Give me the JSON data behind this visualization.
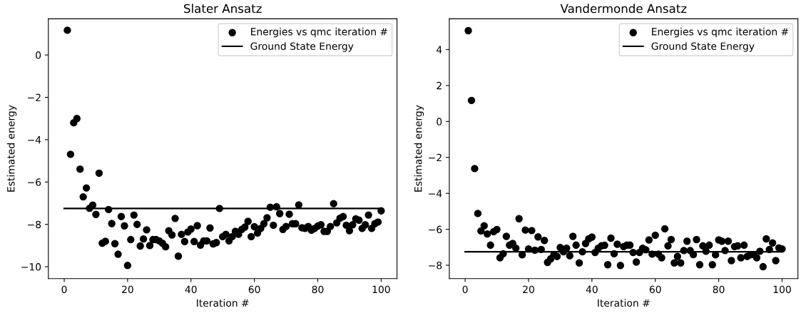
{
  "chart_data": [
    {
      "type": "scatter",
      "title": "Slater Ansatz",
      "xlabel": "Iteration #",
      "ylabel": "Estimated energy",
      "xlim": [
        -5,
        105
      ],
      "ylim": [
        -10.56,
        1.71
      ],
      "xticks": [
        0,
        20,
        40,
        60,
        80,
        100
      ],
      "yticks": [
        {
          "value": -10,
          "label": "−10"
        },
        {
          "value": -8,
          "label": "−8"
        },
        {
          "value": -6,
          "label": "−6"
        },
        {
          "value": -4,
          "label": "−4"
        },
        {
          "value": -2,
          "label": "−2"
        },
        0
      ],
      "legend": "top right",
      "grid": false,
      "series": [
        {
          "name": "Energies vs qmc iteration #",
          "marker": "circle",
          "color": "#000000",
          "x": [
            1,
            2,
            3,
            4,
            5,
            6,
            7,
            8,
            9,
            10,
            11,
            12,
            13,
            14,
            15,
            16,
            17,
            18,
            19,
            20,
            21,
            22,
            23,
            24,
            25,
            26,
            27,
            28,
            29,
            30,
            31,
            32,
            33,
            34,
            35,
            36,
            37,
            38,
            39,
            40,
            41,
            42,
            43,
            44,
            45,
            46,
            47,
            48,
            49,
            50,
            51,
            52,
            53,
            54,
            55,
            56,
            57,
            58,
            59,
            60,
            61,
            62,
            63,
            64,
            65,
            66,
            67,
            68,
            69,
            70,
            71,
            72,
            73,
            74,
            75,
            76,
            77,
            78,
            79,
            80,
            81,
            82,
            83,
            84,
            85,
            86,
            87,
            88,
            89,
            90,
            91,
            92,
            93,
            94,
            95,
            96,
            97,
            98,
            99,
            100
          ],
          "values": [
            1.17,
            -4.69,
            -3.2,
            -3.0,
            -5.39,
            -6.7,
            -6.28,
            -7.24,
            -7.09,
            -7.53,
            -5.58,
            -8.89,
            -8.8,
            -7.3,
            -7.96,
            -8.91,
            -9.41,
            -7.63,
            -8.07,
            -9.94,
            -8.72,
            -7.56,
            -8.0,
            -9.02,
            -8.69,
            -8.26,
            -9.0,
            -8.72,
            -8.72,
            -8.78,
            -8.89,
            -9.06,
            -8.3,
            -8.5,
            -7.72,
            -9.5,
            -8.47,
            -8.81,
            -8.36,
            -8.22,
            -8.81,
            -8.06,
            -8.98,
            -8.78,
            -8.78,
            -8.17,
            -8.92,
            -8.86,
            -7.25,
            -8.58,
            -8.47,
            -8.78,
            -8.58,
            -8.33,
            -8.47,
            -8.24,
            -8.13,
            -7.86,
            -8.58,
            -8.11,
            -8.41,
            -8.19,
            -7.97,
            -7.69,
            -7.19,
            -8.04,
            -7.17,
            -7.49,
            -8.24,
            -8.1,
            -7.52,
            -7.97,
            -7.97,
            -7.08,
            -8.16,
            -8.19,
            -8.1,
            -8.27,
            -8.19,
            -8.08,
            -8.02,
            -8.33,
            -8.33,
            -8.1,
            -7.02,
            -7.93,
            -7.71,
            -7.63,
            -8.04,
            -8.3,
            -8.02,
            -7.74,
            -7.8,
            -8.19,
            -8.02,
            -7.56,
            -8.19,
            -7.97,
            -7.89,
            -7.36
          ]
        },
        {
          "name": "Ground State Energy",
          "type": "line",
          "line_style": "solid",
          "color": "#000000",
          "x": [
            0,
            100
          ],
          "values": [
            -7.25,
            -7.25
          ]
        }
      ]
    },
    {
      "type": "scatter",
      "title": "Vandermonde Ansatz",
      "xlabel": "Iteration #",
      "ylabel": "Estimated energy",
      "xlim": [
        -5,
        105
      ],
      "ylim": [
        -8.74,
        5.71
      ],
      "xticks": [
        0,
        20,
        40,
        60,
        80,
        100
      ],
      "yticks": [
        {
          "value": -8,
          "label": "−8"
        },
        {
          "value": -6,
          "label": "−6"
        },
        {
          "value": -4,
          "label": "−4"
        },
        {
          "value": -2,
          "label": "−2"
        },
        0,
        2,
        4
      ],
      "legend": "top right",
      "grid": false,
      "series": [
        {
          "name": "Energies vs qmc iteration #",
          "marker": "circle",
          "color": "#000000",
          "x": [
            1,
            2,
            3,
            4,
            5,
            6,
            7,
            8,
            9,
            10,
            11,
            12,
            13,
            14,
            15,
            16,
            17,
            18,
            19,
            20,
            21,
            22,
            23,
            24,
            25,
            26,
            27,
            28,
            29,
            30,
            31,
            32,
            33,
            34,
            35,
            36,
            37,
            38,
            39,
            40,
            41,
            42,
            43,
            44,
            45,
            46,
            47,
            48,
            49,
            50,
            51,
            52,
            53,
            54,
            55,
            56,
            57,
            58,
            59,
            60,
            61,
            62,
            63,
            64,
            65,
            66,
            67,
            68,
            69,
            70,
            71,
            72,
            73,
            74,
            75,
            76,
            77,
            78,
            79,
            80,
            81,
            82,
            83,
            84,
            85,
            86,
            87,
            88,
            89,
            90,
            91,
            92,
            93,
            94,
            95,
            96,
            97,
            98,
            99,
            100
          ],
          "values": [
            5.05,
            1.17,
            -2.62,
            -5.12,
            -6.09,
            -5.8,
            -6.26,
            -6.88,
            -6.13,
            -6.01,
            -7.58,
            -7.36,
            -6.39,
            -6.88,
            -6.79,
            -7.05,
            -5.41,
            -7.42,
            -6.04,
            -7.09,
            -6.07,
            -7.16,
            -6.42,
            -7.12,
            -6.62,
            -7.84,
            -7.64,
            -7.41,
            -7.51,
            -7.01,
            -7.25,
            -7.05,
            -7.47,
            -6.39,
            -6.88,
            -7.87,
            -7.25,
            -6.79,
            -6.53,
            -6.43,
            -7.29,
            -7.05,
            -6.92,
            -6.89,
            -7.97,
            -6.49,
            -7.36,
            -6.83,
            -8.01,
            -6.96,
            -6.88,
            -6.88,
            -7.29,
            -7.82,
            -7.29,
            -7.05,
            -7.14,
            -6.59,
            -7.38,
            -6.33,
            -7.38,
            -7.58,
            -5.97,
            -6.92,
            -6.57,
            -7.87,
            -7.51,
            -7.87,
            -7.18,
            -6.66,
            -7.18,
            -7.41,
            -6.57,
            -7.97,
            -6.92,
            -7.22,
            -6.88,
            -7.97,
            -7.42,
            -6.59,
            -6.66,
            -7.18,
            -6.66,
            -7.74,
            -6.96,
            -6.92,
            -7.58,
            -6.88,
            -7.51,
            -7.42,
            -7.41,
            -7.58,
            -7.22,
            -8.08,
            -6.53,
            -7.12,
            -6.76,
            -7.74,
            -7.03,
            -7.09
          ]
        },
        {
          "name": "Ground State Energy",
          "type": "line",
          "line_style": "solid",
          "color": "#000000",
          "x": [
            0,
            100
          ],
          "values": [
            -7.25,
            -7.25
          ]
        }
      ]
    }
  ]
}
